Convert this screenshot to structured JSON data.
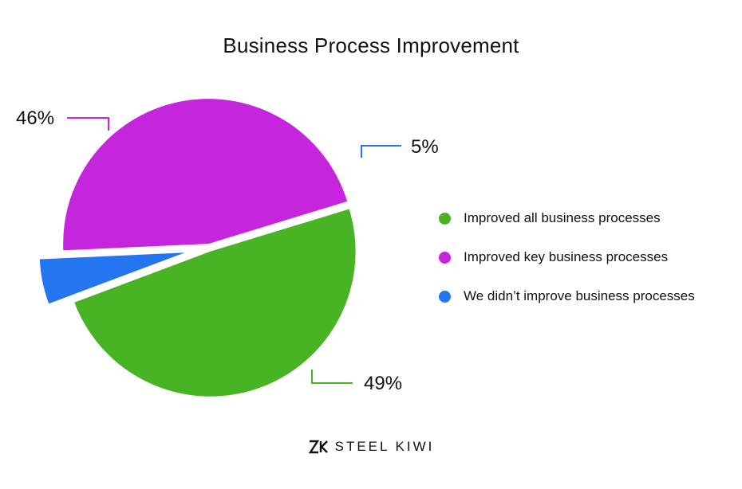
{
  "chart_data": {
    "type": "pie",
    "title": "Business Process Improvement",
    "slices": [
      {
        "label": "Improved all business processes",
        "value": 49,
        "value_label": "49%",
        "color": "#48b424",
        "exploded": false
      },
      {
        "label": "Improved key business processes",
        "value": 46,
        "value_label": "46%",
        "color": "#c525dc",
        "exploded": false
      },
      {
        "label": "We didn’t improve business processes",
        "value": 5,
        "value_label": "5%",
        "color": "#2375f0",
        "exploded": true
      }
    ],
    "legend_position": "right"
  },
  "brand": {
    "name": "STEEL KIWI",
    "logo_icon": "steel-kiwi-logo-icon"
  }
}
